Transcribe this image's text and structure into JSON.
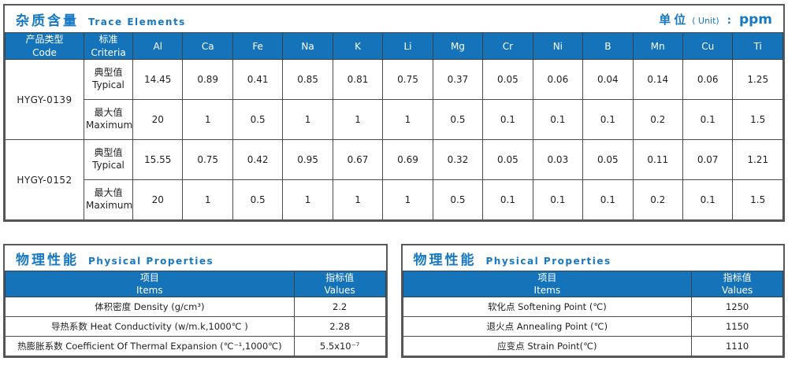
{
  "colors": {
    "accent_blue": "#1778c4",
    "header_bg": "#1573ba",
    "border_dark": "#58595b",
    "cell_border": "#4d4d4d"
  },
  "trace_section": {
    "title_zh": "杂质含量",
    "title_en": "Trace Elements",
    "unit_zh": "单位",
    "unit_paren": "( Unit)",
    "unit_colon": ":",
    "unit_value": "ppm",
    "header": {
      "code_zh": "产品类型",
      "code_en": "Code",
      "criteria_zh": "标准",
      "criteria_en": "Criteria"
    },
    "elements": [
      "Al",
      "Ca",
      "Fe",
      "Na",
      "K",
      "Li",
      "Mg",
      "Cr",
      "Ni",
      "B",
      "Mn",
      "Cu",
      "Ti"
    ],
    "products": [
      {
        "code": "HYGY-0139",
        "rows": [
          {
            "label_zh": "典型值",
            "label_en": "Typical",
            "values": [
              "14.45",
              "0.89",
              "0.41",
              "0.85",
              "0.81",
              "0.75",
              "0.37",
              "0.05",
              "0.06",
              "0.04",
              "0.14",
              "0.06",
              "1.25"
            ]
          },
          {
            "label_zh": "最大值",
            "label_en": "Maximum",
            "values": [
              "20",
              "1",
              "0.5",
              "1",
              "1",
              "1",
              "0.5",
              "0.1",
              "0.1",
              "0.1",
              "0.2",
              "0.1",
              "1.5"
            ]
          }
        ]
      },
      {
        "code": "HYGY-0152",
        "rows": [
          {
            "label_zh": "典型值",
            "label_en": "Typical",
            "values": [
              "15.55",
              "0.75",
              "0.42",
              "0.95",
              "0.67",
              "0.69",
              "0.32",
              "0.05",
              "0.03",
              "0.05",
              "0.11",
              "0.07",
              "1.21"
            ]
          },
          {
            "label_zh": "最大值",
            "label_en": "Maximum",
            "values": [
              "20",
              "1",
              "0.5",
              "1",
              "1",
              "1",
              "0.5",
              "0.1",
              "0.1",
              "0.1",
              "0.2",
              "0.1",
              "1.5"
            ]
          }
        ]
      }
    ]
  },
  "physical_left": {
    "title_zh": "物理性能",
    "title_en": "Physical Properties",
    "col_item_zh": "项目",
    "col_item_en": "Items",
    "col_value_zh": "指标值",
    "col_value_en": "Values",
    "rows": [
      {
        "item": "体积密度 Density (g/cm³)",
        "value": "2.2"
      },
      {
        "item": "导热系数 Heat Conductivity (w/m.k,1000℃ )",
        "value": "2.28"
      },
      {
        "item": "热膨胀系数 Coefficient Of Thermal Expansion (℃⁻¹,1000℃)",
        "value": "5.5x10⁻⁷"
      }
    ]
  },
  "physical_right": {
    "title_zh": "物理性能",
    "title_en": "Physical Properties",
    "col_item_zh": "项目",
    "col_item_en": "Items",
    "col_value_zh": "指标值",
    "col_value_en": "Values",
    "rows": [
      {
        "item": "软化点 Softening Point (℃)",
        "value": "1250"
      },
      {
        "item": "退火点 Annealing Point (℃)",
        "value": "1150"
      },
      {
        "item": "应变点 Strain Point(℃)",
        "value": "1110"
      }
    ]
  }
}
